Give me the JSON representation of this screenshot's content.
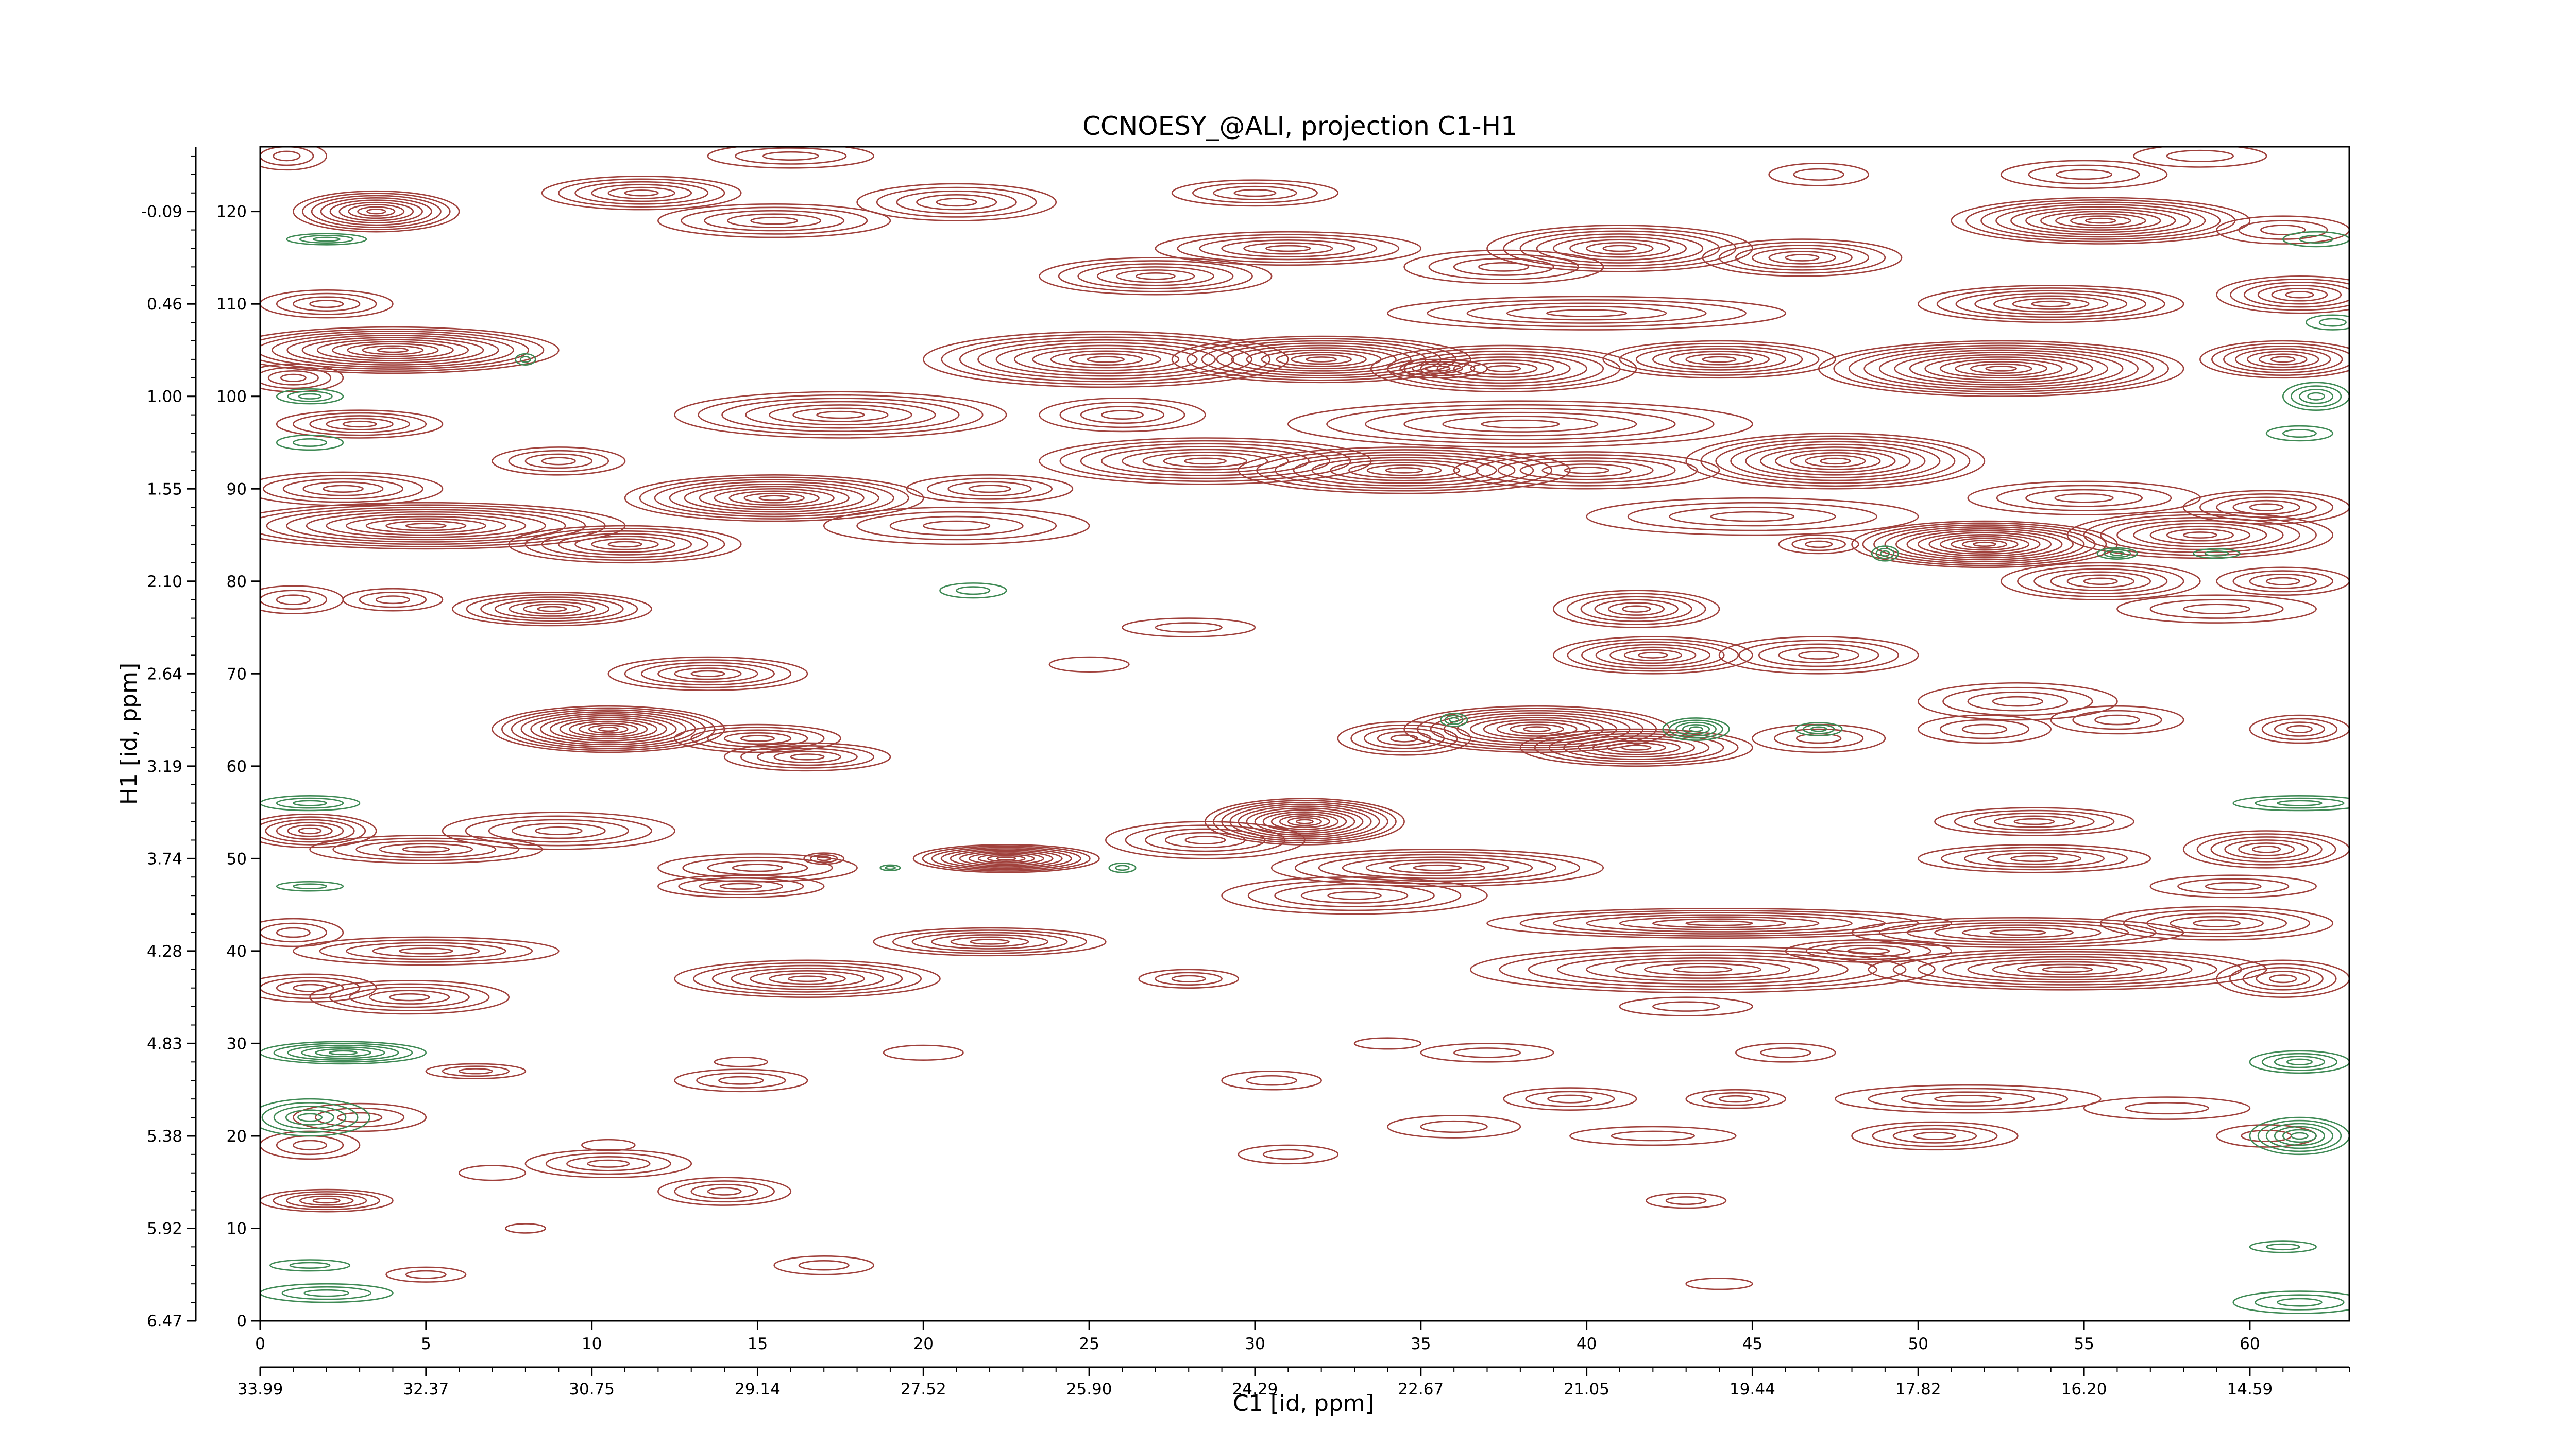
{
  "chart_data": {
    "type": "contour",
    "title": "CCNOESY_@ALI, projection C1-H1",
    "xlabel": "C1 [id, ppm]",
    "ylabel": "H1 [id, ppm]",
    "xlim": [
      0,
      63
    ],
    "ylim": [
      0,
      127
    ],
    "x_ticks": [
      0,
      5,
      10,
      15,
      20,
      25,
      30,
      35,
      40,
      45,
      50,
      55,
      60
    ],
    "x_ppm_ticks": [
      "33.99",
      "32.37",
      "30.75",
      "29.14",
      "27.52",
      "25.90",
      "24.29",
      "22.67",
      "21.05",
      "19.44",
      "17.82",
      "16.20",
      "14.59"
    ],
    "y_ticks": [
      0,
      10,
      20,
      30,
      40,
      50,
      60,
      70,
      80,
      90,
      100,
      110,
      120
    ],
    "y_ppm_ticks": [
      "6.47",
      "5.92",
      "5.38",
      "4.83",
      "4.28",
      "3.74",
      "3.19",
      "2.64",
      "2.10",
      "1.55",
      "1.00",
      "0.46",
      "-0.09"
    ],
    "positive_color": "#a0413c",
    "negative_color": "#3f8a55",
    "positive_peaks": [
      [
        0.8,
        126,
        1.2,
        1.5,
        3
      ],
      [
        3.5,
        120,
        2.5,
        2.2,
        9
      ],
      [
        11.5,
        122,
        3,
        1.8,
        6
      ],
      [
        15.5,
        119,
        3.5,
        1.8,
        5
      ],
      [
        21,
        121,
        3,
        2,
        5
      ],
      [
        30,
        122,
        2.5,
        1.4,
        4
      ],
      [
        16,
        126,
        2.5,
        1.3,
        3
      ],
      [
        47,
        124,
        1.5,
        1.2,
        2
      ],
      [
        55,
        124,
        2.5,
        1.5,
        3
      ],
      [
        58.5,
        126,
        2,
        1.2,
        2
      ],
      [
        27,
        113,
        3.5,
        2,
        6
      ],
      [
        31,
        116,
        4,
        1.8,
        6
      ],
      [
        37.5,
        114,
        3,
        1.8,
        4
      ],
      [
        41,
        116,
        4,
        2.5,
        8
      ],
      [
        46.5,
        115,
        3,
        2,
        6
      ],
      [
        55.5,
        119,
        4.5,
        2.5,
        10
      ],
      [
        61,
        118,
        2,
        1.5,
        3
      ],
      [
        54,
        110,
        4,
        2,
        7
      ],
      [
        61.5,
        111,
        2.5,
        2,
        6
      ],
      [
        2,
        110,
        2,
        1.5,
        4
      ],
      [
        4,
        105,
        5,
        2.5,
        11
      ],
      [
        1,
        102,
        1.5,
        1.5,
        4
      ],
      [
        3,
        97,
        2.5,
        1.5,
        5
      ],
      [
        25.5,
        104,
        5.5,
        3,
        10
      ],
      [
        32,
        104,
        4.5,
        2.5,
        10
      ],
      [
        37.5,
        103,
        4,
        2.5,
        8
      ],
      [
        44,
        104,
        3.5,
        2,
        7
      ],
      [
        52.5,
        103,
        5.5,
        3,
        12
      ],
      [
        61,
        104,
        2.5,
        2,
        7
      ],
      [
        35.5,
        103,
        1.5,
        1,
        4
      ],
      [
        40,
        109,
        6,
        1.8,
        5
      ],
      [
        17.5,
        98,
        5,
        2.5,
        7
      ],
      [
        26,
        98,
        2.5,
        1.8,
        4
      ],
      [
        38,
        97,
        7,
        2.5,
        6
      ],
      [
        28.5,
        93,
        5,
        2.5,
        8
      ],
      [
        34.5,
        92,
        5,
        2.5,
        9
      ],
      [
        40,
        92,
        4,
        2,
        6
      ],
      [
        47.5,
        93,
        4.5,
        3,
        10
      ],
      [
        15.5,
        89,
        4.5,
        2.5,
        10
      ],
      [
        22,
        90,
        2.5,
        1.5,
        4
      ],
      [
        9,
        93,
        2,
        1.5,
        4
      ],
      [
        2.5,
        90,
        3,
        1.8,
        5
      ],
      [
        5,
        86,
        6,
        2.5,
        10
      ],
      [
        11,
        84,
        3.5,
        2,
        7
      ],
      [
        21,
        86,
        4,
        2,
        4
      ],
      [
        45,
        87,
        5,
        2,
        4
      ],
      [
        47,
        84,
        1.2,
        1,
        3
      ],
      [
        52,
        84,
        4,
        2.5,
        12
      ],
      [
        58.5,
        85,
        4,
        2.5,
        8
      ],
      [
        60.5,
        88,
        2.5,
        1.8,
        5
      ],
      [
        55,
        89,
        3.5,
        1.8,
        4
      ],
      [
        55.5,
        80,
        3,
        2,
        6
      ],
      [
        61,
        80,
        2,
        1.5,
        4
      ],
      [
        59,
        77,
        3,
        1.5,
        3
      ],
      [
        1,
        78,
        1.5,
        1.5,
        3
      ],
      [
        4,
        78,
        1.5,
        1.2,
        3
      ],
      [
        8.8,
        77,
        3,
        1.8,
        7
      ],
      [
        41.5,
        77,
        2.5,
        2,
        6
      ],
      [
        42,
        72,
        3,
        2,
        7
      ],
      [
        47,
        72,
        3,
        2,
        5
      ],
      [
        28,
        75,
        2,
        1,
        2
      ],
      [
        25,
        71,
        1.2,
        0.8,
        1
      ],
      [
        13.5,
        70,
        3,
        1.8,
        6
      ],
      [
        10.5,
        64,
        3.5,
        2.5,
        12
      ],
      [
        15,
        63,
        2.5,
        1.5,
        5
      ],
      [
        16.5,
        61,
        2.5,
        1.5,
        5
      ],
      [
        38.5,
        64,
        4,
        2.5,
        10
      ],
      [
        41.5,
        62,
        3.5,
        2,
        8
      ],
      [
        34.5,
        63,
        2,
        1.8,
        5
      ],
      [
        47,
        63,
        2,
        1.5,
        3
      ],
      [
        53,
        67,
        3,
        2,
        4
      ],
      [
        52,
        64,
        2,
        1.5,
        3
      ],
      [
        56,
        65,
        2,
        1.5,
        3
      ],
      [
        61.5,
        64,
        1.5,
        1.5,
        4
      ],
      [
        31.5,
        54,
        3,
        2.5,
        12
      ],
      [
        28.5,
        52,
        3,
        2,
        5
      ],
      [
        35.5,
        49,
        5,
        2,
        7
      ],
      [
        22.5,
        50,
        2.8,
        1.5,
        10
      ],
      [
        33,
        46,
        4,
        2,
        5
      ],
      [
        9,
        53,
        3.5,
        2,
        5
      ],
      [
        5,
        51,
        3.5,
        1.5,
        5
      ],
      [
        1.5,
        53,
        2,
        1.8,
        6
      ],
      [
        15,
        49,
        3,
        1.5,
        4
      ],
      [
        14.5,
        47,
        2.5,
        1.2,
        4
      ],
      [
        17,
        50,
        0.6,
        0.6,
        3
      ],
      [
        53.5,
        54,
        3,
        1.5,
        5
      ],
      [
        53.5,
        50,
        3.5,
        1.5,
        5
      ],
      [
        60.5,
        51,
        2.5,
        2,
        6
      ],
      [
        59.5,
        47,
        2.5,
        1.2,
        3
      ],
      [
        44,
        43,
        7,
        1.6,
        7
      ],
      [
        53,
        42,
        5,
        1.6,
        6
      ],
      [
        59,
        43,
        3.5,
        1.8,
        5
      ],
      [
        43.5,
        38,
        7,
        2.5,
        8
      ],
      [
        54.5,
        38,
        6,
        2.2,
        8
      ],
      [
        61,
        37,
        2,
        2,
        5
      ],
      [
        48.5,
        40,
        2.5,
        1.2,
        4
      ],
      [
        22,
        41,
        3.5,
        1.5,
        6
      ],
      [
        16.5,
        37,
        4,
        2,
        7
      ],
      [
        5,
        40,
        4,
        1.5,
        5
      ],
      [
        4.5,
        35,
        3,
        1.8,
        5
      ],
      [
        1.5,
        36,
        2,
        1.5,
        4
      ],
      [
        1,
        42,
        1.5,
        1.5,
        3
      ],
      [
        28,
        37,
        1.5,
        1,
        3
      ],
      [
        43,
        34,
        2,
        1,
        2
      ],
      [
        34,
        30,
        1,
        0.6,
        1
      ],
      [
        20,
        29,
        1.2,
        0.8,
        1
      ],
      [
        37,
        29,
        2,
        1,
        2
      ],
      [
        46,
        29,
        1.5,
        1,
        2
      ],
      [
        30.5,
        26,
        1.5,
        1,
        2
      ],
      [
        39.5,
        24,
        2,
        1.2,
        3
      ],
      [
        44.5,
        24,
        1.5,
        1,
        3
      ],
      [
        51.5,
        24,
        4,
        1.5,
        4
      ],
      [
        57.5,
        23,
        2.5,
        1.2,
        2
      ],
      [
        6.5,
        27,
        1.5,
        0.8,
        3
      ],
      [
        14.5,
        26,
        2,
        1.2,
        3
      ],
      [
        50.5,
        20,
        2.5,
        1.5,
        4
      ],
      [
        42,
        20,
        2.5,
        1,
        2
      ],
      [
        36,
        21,
        2,
        1.2,
        2
      ],
      [
        10.5,
        17,
        2.5,
        1.5,
        4
      ],
      [
        14,
        14,
        2,
        1.5,
        4
      ],
      [
        7,
        16,
        1,
        0.8,
        1
      ],
      [
        3,
        22,
        2,
        1.5,
        3
      ],
      [
        1.5,
        19,
        1.5,
        1.5,
        3
      ],
      [
        2,
        13,
        2,
        1.2,
        5
      ],
      [
        17,
        6,
        1.5,
        1,
        2
      ],
      [
        31,
        18,
        1.5,
        1,
        2
      ],
      [
        43,
        13,
        1.2,
        0.8,
        2
      ],
      [
        60.5,
        20,
        1.5,
        1.2,
        2
      ],
      [
        5,
        5,
        1.2,
        0.8,
        2
      ],
      [
        10.5,
        19,
        0.8,
        0.6,
        1
      ],
      [
        14.5,
        28,
        0.8,
        0.5,
        1
      ],
      [
        8,
        10,
        0.6,
        0.5,
        1
      ],
      [
        44,
        4,
        1,
        0.6,
        1
      ]
    ],
    "negative_peaks": [
      [
        2,
        117,
        1.2,
        0.6,
        3
      ],
      [
        8,
        104,
        0.3,
        0.6,
        2
      ],
      [
        1.5,
        100,
        1,
        0.8,
        3
      ],
      [
        1.5,
        95,
        1,
        0.8,
        2
      ],
      [
        62,
        100,
        1,
        1.5,
        4
      ],
      [
        61.5,
        96,
        1,
        0.8,
        2
      ],
      [
        62.5,
        108,
        0.8,
        0.8,
        2
      ],
      [
        62,
        117,
        1,
        0.8,
        2
      ],
      [
        49,
        83,
        0.4,
        0.8,
        3
      ],
      [
        56,
        83,
        0.6,
        0.6,
        3
      ],
      [
        59,
        83,
        0.7,
        0.5,
        2
      ],
      [
        21.5,
        79,
        1,
        0.8,
        2
      ],
      [
        36,
        65,
        0.4,
        0.7,
        3
      ],
      [
        43.3,
        64,
        1,
        1.2,
        5
      ],
      [
        47,
        64,
        0.7,
        0.7,
        3
      ],
      [
        26,
        49,
        0.4,
        0.5,
        2
      ],
      [
        19,
        49,
        0.3,
        0.3,
        2
      ],
      [
        1.5,
        56,
        1.5,
        0.8,
        3
      ],
      [
        1.5,
        47,
        1,
        0.5,
        2
      ],
      [
        2.5,
        29,
        2.5,
        1.2,
        6
      ],
      [
        1.5,
        22,
        1.8,
        2,
        5
      ],
      [
        61.5,
        28,
        1.5,
        1.2,
        4
      ],
      [
        61.5,
        20,
        1.5,
        2,
        6
      ],
      [
        61,
        8,
        1,
        0.6,
        2
      ],
      [
        1.5,
        6,
        1.2,
        0.6,
        2
      ],
      [
        2,
        3,
        2,
        1,
        3
      ],
      [
        61.5,
        2,
        2,
        1.2,
        3
      ],
      [
        61.5,
        56,
        2,
        0.8,
        3
      ]
    ]
  }
}
